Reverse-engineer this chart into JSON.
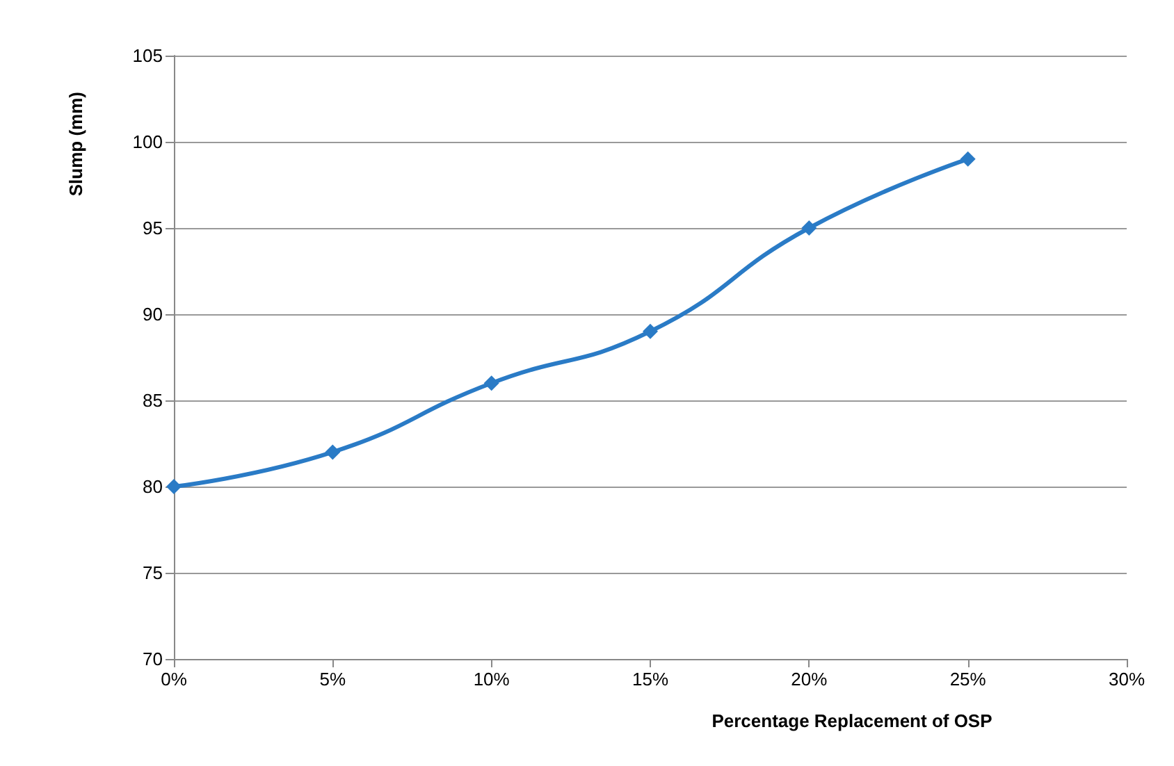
{
  "chart_data": {
    "type": "line",
    "xlabel": "Percentage Replacement of OSP",
    "ylabel": "Slump (mm)",
    "x": [
      0,
      5,
      10,
      15,
      20,
      25
    ],
    "series": [
      {
        "color": "#2a7bc6",
        "values": [
          80,
          82,
          86,
          89,
          95,
          99
        ]
      }
    ],
    "xlim": [
      0,
      30
    ],
    "xticks": [
      {
        "value": 0,
        "label": "0%"
      },
      {
        "value": 5,
        "label": "5%"
      },
      {
        "value": 10,
        "label": "10%"
      },
      {
        "value": 15,
        "label": "15%"
      },
      {
        "value": 20,
        "label": "20%"
      },
      {
        "value": 25,
        "label": "25%"
      },
      {
        "value": 30,
        "label": "30%"
      }
    ],
    "ylim": [
      70,
      105
    ],
    "yticks": [
      70,
      75,
      80,
      85,
      90,
      95,
      100,
      105
    ],
    "grid": "y",
    "marker": "diamond",
    "line_style": "solid"
  }
}
